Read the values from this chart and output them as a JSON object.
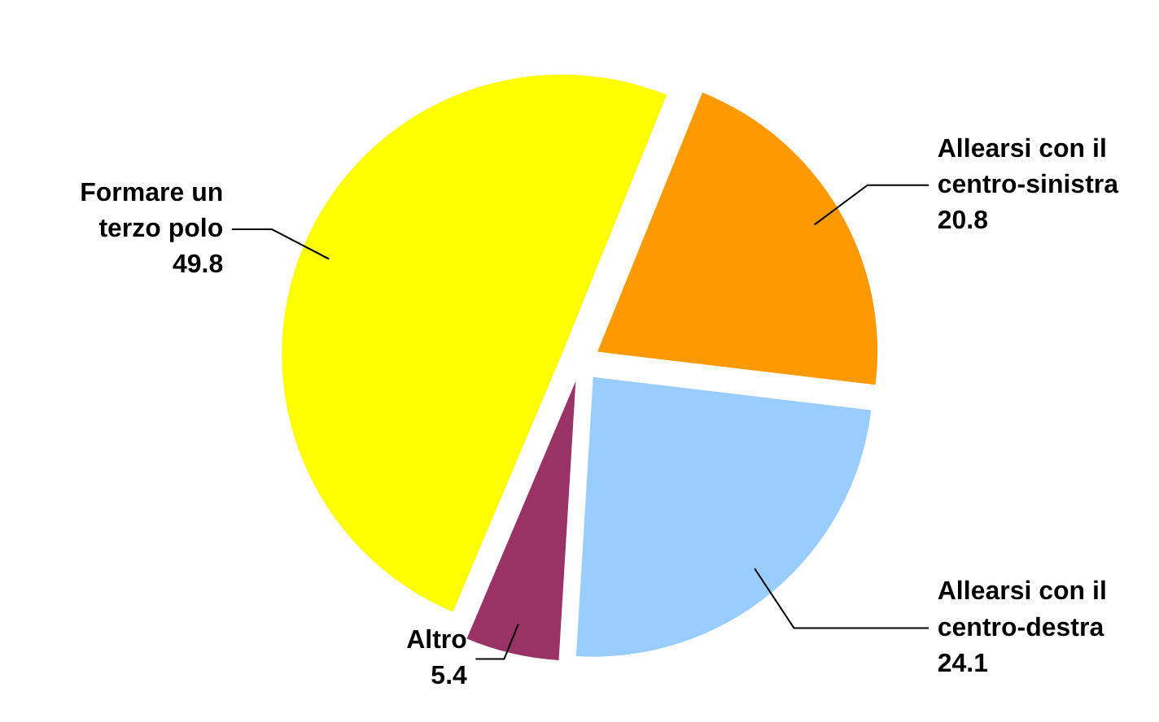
{
  "chart_data": {
    "type": "pie",
    "categories": [
      "Allearsi con il\ncentro-sinistra",
      "Allearsi con il\ncentro-destra",
      "Altro",
      "Formare un\nterzo polo"
    ],
    "values": [
      20.8,
      24.1,
      5.4,
      49.8
    ],
    "colors": [
      "#ff9900",
      "#99ccff",
      "#993366",
      "#ffff00"
    ],
    "data_labels": true
  }
}
